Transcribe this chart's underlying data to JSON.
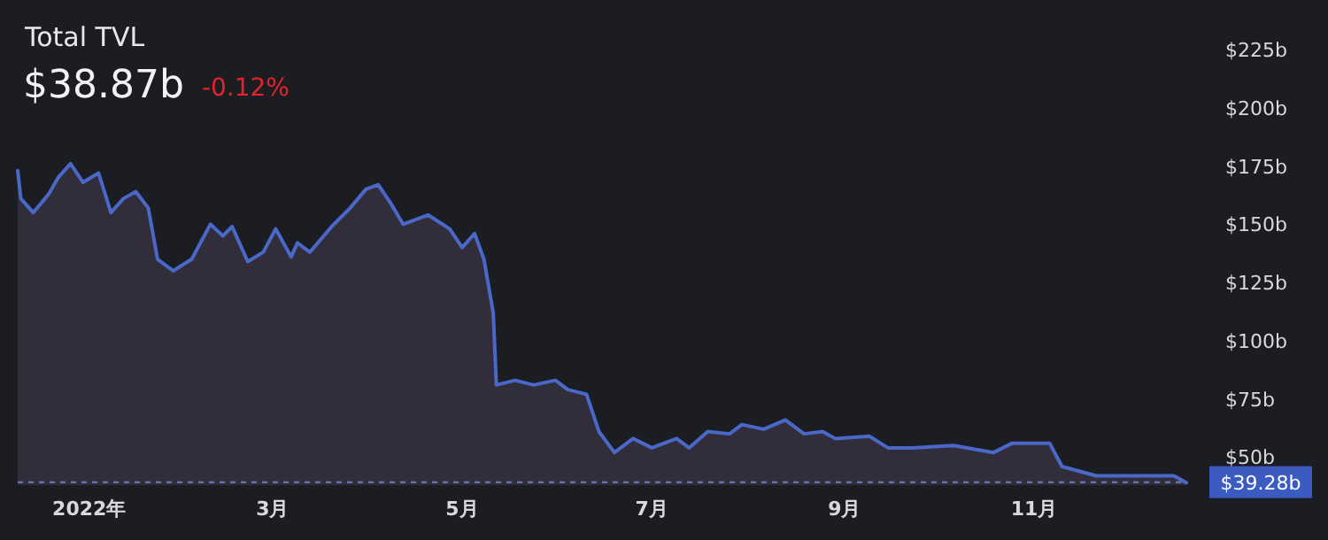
{
  "chart_data": {
    "type": "area",
    "title": "Total TVL",
    "subtitle": "$38.87b",
    "annotations": [
      "-0.12%"
    ],
    "x": [
      "2021-12-09",
      "2021-12-10",
      "2021-12-14",
      "2021-12-19",
      "2021-12-22",
      "2021-12-26",
      "2021-12-30",
      "2022-01-04",
      "2022-01-08",
      "2022-01-12",
      "2022-01-16",
      "2022-01-20",
      "2022-01-23",
      "2022-01-28",
      "2022-02-03",
      "2022-02-09",
      "2022-02-13",
      "2022-02-16",
      "2022-02-21",
      "2022-02-26",
      "2022-03-02",
      "2022-03-07",
      "2022-03-09",
      "2022-03-13",
      "2022-03-20",
      "2022-03-26",
      "2022-03-31",
      "2022-04-04",
      "2022-04-08",
      "2022-04-12",
      "2022-04-20",
      "2022-04-27",
      "2022-05-01",
      "2022-05-05",
      "2022-05-08",
      "2022-05-11",
      "2022-05-12",
      "2022-05-18",
      "2022-05-24",
      "2022-05-31",
      "2022-06-04",
      "2022-06-10",
      "2022-06-14",
      "2022-06-19",
      "2022-06-25",
      "2022-07-01",
      "2022-07-09",
      "2022-07-13",
      "2022-07-19",
      "2022-07-26",
      "2022-07-30",
      "2022-08-06",
      "2022-08-13",
      "2022-08-19",
      "2022-08-25",
      "2022-08-29",
      "2022-09-09",
      "2022-09-15",
      "2022-09-23",
      "2022-10-06",
      "2022-10-19",
      "2022-10-25",
      "2022-11-06",
      "2022-11-10",
      "2022-11-21",
      "2022-12-02",
      "2022-12-16",
      "2022-12-20"
    ],
    "series": [
      {
        "color": "#4a68c8",
        "values": [
          173,
          161,
          155,
          163,
          170,
          176,
          168,
          172,
          155,
          161,
          164,
          157,
          135,
          130,
          135,
          150,
          145,
          149,
          134,
          138,
          148,
          136,
          142,
          138,
          149,
          157,
          165,
          167,
          159,
          150,
          154,
          148,
          140,
          146,
          135,
          112,
          81,
          83,
          81,
          83,
          79,
          77,
          61,
          52,
          58,
          54,
          58,
          54,
          61,
          60,
          64,
          62,
          66,
          60,
          61,
          58,
          59,
          54,
          54,
          55,
          52,
          56,
          56,
          46,
          42,
          42,
          42,
          39
        ]
      }
    ],
    "xlim": [
      "2021-12-09",
      "2022-12-20"
    ],
    "xticks": [
      {
        "value": "2022-01-01",
        "label": "2022年"
      },
      {
        "value": "2022-03-01",
        "label": "3月"
      },
      {
        "value": "2022-05-01",
        "label": "5月"
      },
      {
        "value": "2022-07-01",
        "label": "7月"
      },
      {
        "value": "2022-09-01",
        "label": "9月"
      },
      {
        "value": "2022-11-01",
        "label": "11月"
      }
    ],
    "ylim": [
      38,
      225
    ],
    "yticks": [
      {
        "value": 50,
        "label": "$50b"
      },
      {
        "value": 75,
        "label": "$75b"
      },
      {
        "value": 100,
        "label": "$100b"
      },
      {
        "value": 125,
        "label": "$125b"
      },
      {
        "value": 150,
        "label": "$150b"
      },
      {
        "value": 175,
        "label": "$175b"
      },
      {
        "value": 200,
        "label": "$200b"
      },
      {
        "value": 225,
        "label": "$225b"
      }
    ],
    "ref_lines": [
      {
        "axis": "y",
        "value": 39.28,
        "label": "$39.28b",
        "color": "#6f7fc4",
        "line_style": "dashed"
      }
    ],
    "grid": false
  }
}
